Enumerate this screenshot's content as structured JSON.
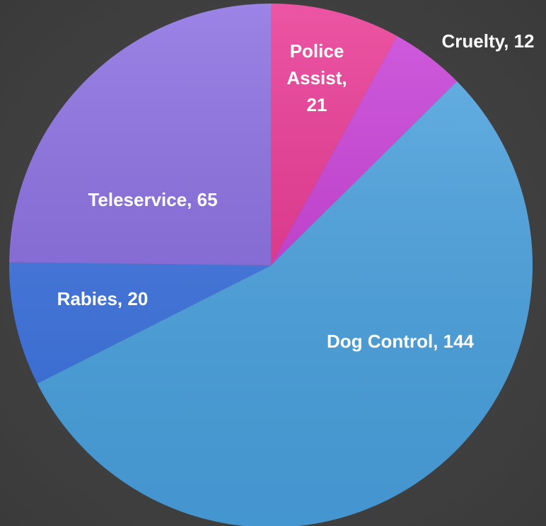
{
  "chart_data": {
    "type": "pie",
    "values": [
      21,
      12,
      144,
      20,
      65
    ],
    "value_labels": [
      "Police Assist, 21",
      "Cruelty, 12",
      "Dog Control, 144",
      "Rabies, 20",
      "Teleservice, 65"
    ],
    "colors": [
      "#e8308f",
      "#c73ad6",
      "#4aa3e2",
      "#3b73e2",
      "#8669e0"
    ],
    "start_angle": 0,
    "direction": "clockwise"
  }
}
